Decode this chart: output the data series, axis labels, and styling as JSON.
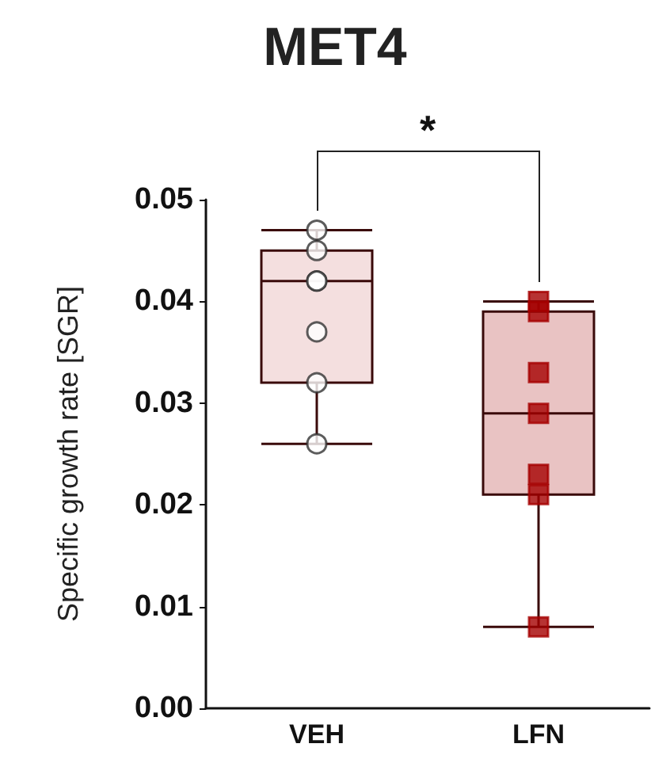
{
  "chart_data": {
    "type": "box",
    "title": "MET4",
    "ylabel": "Specific growth rate [SGR]",
    "categories": [
      "VEH",
      "LFN"
    ],
    "series": [
      {
        "colors": [
          "#f4dfdf",
          "#e9c3c3"
        ],
        "boxes": [
          {
            "low": 0.026,
            "q1": 0.032,
            "median": 0.042,
            "q3": 0.045,
            "high": 0.047
          },
          {
            "low": 0.008,
            "q1": 0.021,
            "median": 0.029,
            "q3": 0.039,
            "high": 0.04
          }
        ]
      },
      {
        "type": "scatter",
        "color": "#ffffff",
        "marker": "circle",
        "x": [
          "VEH",
          "VEH",
          "VEH",
          "VEH",
          "VEH",
          "VEH",
          "VEH"
        ],
        "values": [
          0.047,
          0.045,
          0.042,
          0.042,
          0.037,
          0.032,
          0.026
        ]
      },
      {
        "type": "scatter",
        "color": "#a50000",
        "marker": "square",
        "x": [
          "LFN",
          "LFN",
          "LFN",
          "LFN",
          "LFN",
          "LFN",
          "LFN"
        ],
        "values": [
          0.04,
          0.039,
          0.033,
          0.029,
          0.023,
          0.021,
          0.008
        ]
      }
    ],
    "ylim": [
      0,
      0.05
    ],
    "yticks": [
      {
        "value": 0,
        "label": "0.00"
      },
      0.01,
      0.02,
      0.03,
      0.04,
      0.05
    ],
    "annotations": [
      "*"
    ]
  }
}
